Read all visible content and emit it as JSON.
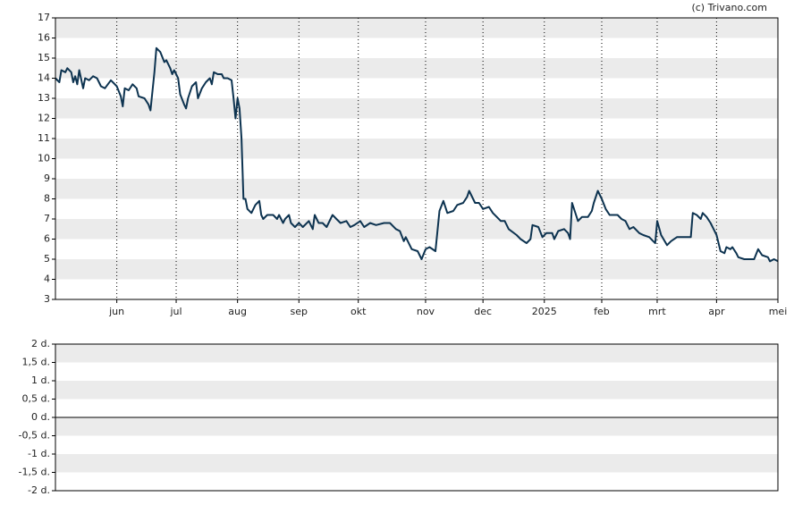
{
  "credit": "(c) Trivano.com",
  "chart_data": [
    {
      "type": "line",
      "color": "#0d3350",
      "x": [
        0,
        2,
        3,
        5,
        6,
        8,
        9,
        10,
        11,
        12,
        14,
        15,
        17,
        19,
        21,
        23,
        25,
        28,
        31,
        33,
        34,
        35,
        37,
        39,
        41,
        42,
        45,
        47,
        48,
        50,
        51,
        53,
        55,
        56,
        58,
        59,
        60,
        62,
        63,
        65,
        66,
        67,
        69,
        71,
        72,
        74,
        76,
        78,
        79,
        80,
        82,
        84,
        85,
        87,
        89,
        90,
        91,
        92,
        93,
        94,
        95,
        96,
        97,
        99,
        101,
        103,
        104,
        105,
        107,
        110,
        112,
        113,
        115,
        116,
        118,
        119,
        121,
        123,
        125,
        128,
        130,
        131,
        133,
        135,
        137,
        140,
        142,
        144,
        147,
        149,
        151,
        154,
        156,
        159,
        162,
        166,
        169,
        172,
        174,
        176,
        177,
        180,
        183,
        185,
        187,
        189,
        192,
        194,
        196,
        198,
        201,
        203,
        206,
        208,
        209,
        212,
        214,
        216,
        219,
        221,
        223,
        225,
        227,
        229,
        233,
        235,
        238,
        240,
        241,
        244,
        246,
        248,
        251,
        252,
        254,
        257,
        259,
        260,
        261,
        263,
        264,
        266,
        269,
        271,
        272,
        274,
        276,
        278,
        280,
        284,
        286,
        288,
        290,
        292,
        295,
        297,
        300,
        302,
        303,
        304,
        306,
        309,
        311,
        314,
        317,
        321,
        322,
        324,
        326,
        327,
        329,
        331,
        334,
        336,
        338,
        339,
        341,
        342,
        344,
        345,
        348,
        351,
        353,
        355,
        357,
        360,
        361,
        363,
        365
      ],
      "values": [
        14.0,
        13.8,
        14.4,
        14.3,
        14.5,
        14.3,
        13.8,
        14.1,
        13.7,
        14.4,
        13.5,
        14.0,
        13.9,
        14.1,
        14.0,
        13.6,
        13.5,
        13.9,
        13.6,
        13.1,
        12.6,
        13.5,
        13.4,
        13.7,
        13.5,
        13.1,
        13.0,
        12.7,
        12.4,
        14.3,
        15.5,
        15.3,
        14.8,
        14.9,
        14.5,
        14.2,
        14.4,
        14.0,
        13.2,
        12.7,
        12.5,
        13.0,
        13.6,
        13.8,
        13.0,
        13.5,
        13.8,
        14.0,
        13.7,
        14.3,
        14.2,
        14.2,
        14.0,
        14.0,
        13.9,
        13.0,
        12.0,
        13.0,
        12.5,
        11.0,
        8.0,
        8.0,
        7.5,
        7.3,
        7.7,
        7.9,
        7.2,
        7.0,
        7.2,
        7.2,
        7.0,
        7.2,
        6.8,
        7.0,
        7.2,
        6.8,
        6.6,
        6.8,
        6.6,
        6.9,
        6.5,
        7.2,
        6.8,
        6.8,
        6.6,
        7.2,
        7.0,
        6.8,
        6.9,
        6.6,
        6.7,
        6.9,
        6.6,
        6.8,
        6.7,
        6.8,
        6.8,
        6.5,
        6.4,
        5.9,
        6.1,
        5.5,
        5.4,
        5.0,
        5.5,
        5.6,
        5.4,
        7.4,
        7.9,
        7.3,
        7.4,
        7.7,
        7.8,
        8.1,
        8.4,
        7.8,
        7.8,
        7.5,
        7.6,
        7.3,
        7.1,
        6.9,
        6.9,
        6.5,
        6.2,
        6.0,
        5.8,
        6.0,
        6.7,
        6.6,
        6.1,
        6.3,
        6.3,
        6.0,
        6.4,
        6.5,
        6.3,
        6.0,
        7.8,
        7.2,
        6.9,
        7.1,
        7.1,
        7.4,
        7.8,
        8.4,
        8.0,
        7.5,
        7.2,
        7.2,
        7.0,
        6.9,
        6.5,
        6.6,
        6.3,
        6.2,
        6.1,
        5.9,
        5.8,
        6.9,
        6.2,
        5.7,
        5.9,
        6.1,
        6.1,
        6.1,
        7.3,
        7.2,
        7.0,
        7.3,
        7.1,
        6.8,
        6.2,
        5.4,
        5.3,
        5.6,
        5.5,
        5.6,
        5.3,
        5.1,
        5.0,
        5.0,
        5.0,
        5.5,
        5.2,
        5.1,
        4.9,
        5.0,
        4.9
      ],
      "xlim": [
        0,
        365
      ],
      "xticks": [
        {
          "value": 31,
          "label": "jun"
        },
        {
          "value": 61,
          "label": "jul"
        },
        {
          "value": 92,
          "label": "aug"
        },
        {
          "value": 123,
          "label": "sep"
        },
        {
          "value": 153,
          "label": "okt"
        },
        {
          "value": 187,
          "label": "nov"
        },
        {
          "value": 216,
          "label": "dec"
        },
        {
          "value": 247,
          "label": "2025"
        },
        {
          "value": 276,
          "label": "feb"
        },
        {
          "value": 304,
          "label": "mrt"
        },
        {
          "value": 334,
          "label": "apr"
        },
        {
          "value": 365,
          "label": "mei"
        }
      ],
      "ylim": [
        3,
        17
      ],
      "yticks": [
        3,
        4,
        5,
        6,
        7,
        8,
        9,
        10,
        11,
        12,
        13,
        14,
        15,
        16,
        17
      ]
    },
    {
      "type": "bar",
      "ylim": [
        -2,
        2
      ],
      "yticks": [
        {
          "value": 2,
          "label": "2 d."
        },
        {
          "value": 1.5,
          "label": "1,5 d."
        },
        {
          "value": 1,
          "label": "1 d."
        },
        {
          "value": 0.5,
          "label": "0,5 d."
        },
        {
          "value": 0,
          "label": "0 d."
        },
        {
          "value": -0.5,
          "label": "-0,5 d."
        },
        {
          "value": -1,
          "label": "-1 d."
        },
        {
          "value": -1.5,
          "label": "-1,5 d."
        },
        {
          "value": -2,
          "label": "-2 d."
        }
      ]
    }
  ]
}
